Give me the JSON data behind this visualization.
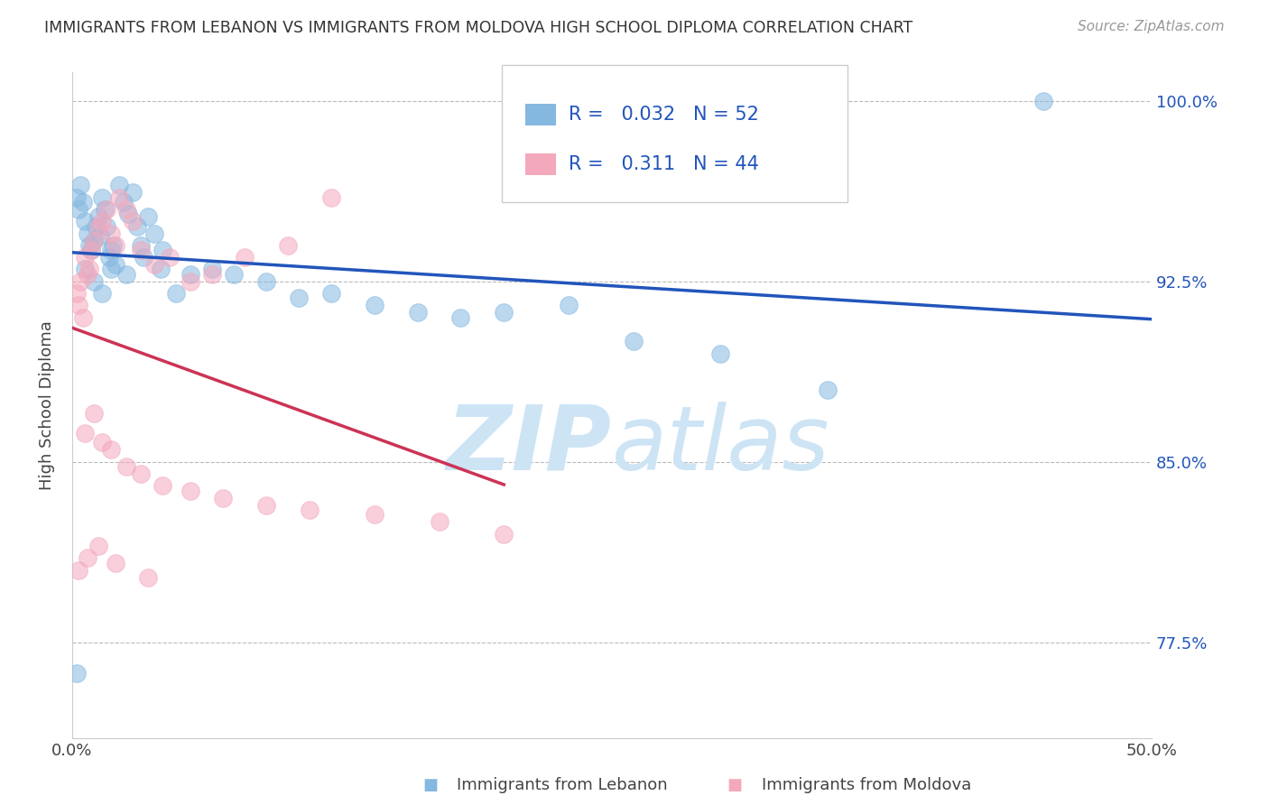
{
  "title": "IMMIGRANTS FROM LEBANON VS IMMIGRANTS FROM MOLDOVA HIGH SCHOOL DIPLOMA CORRELATION CHART",
  "source": "Source: ZipAtlas.com",
  "ylabel": "High School Diploma",
  "R1": 0.032,
  "N1": 52,
  "R2": 0.311,
  "N2": 44,
  "color1": "#85b8e0",
  "color2": "#f4a8bc",
  "trend_color1": "#2255bb",
  "trend_color2": "#cc3355",
  "xlim": [
    0.0,
    0.5
  ],
  "ylim": [
    0.735,
    1.012
  ],
  "xtick_vals": [
    0.0,
    0.05,
    0.1,
    0.15,
    0.2,
    0.25,
    0.3,
    0.35,
    0.4,
    0.45,
    0.5
  ],
  "xtick_labels": [
    "0.0%",
    "",
    "",
    "",
    "",
    "",
    "",
    "",
    "",
    "",
    "50.0%"
  ],
  "ytick_values": [
    0.775,
    0.85,
    0.925,
    1.0
  ],
  "ytick_labels_right": [
    "77.5%",
    "85.0%",
    "92.5%",
    "100.0%"
  ],
  "watermark_top": "ZIP",
  "watermark_bot": "atlas",
  "watermark_color": "#cde4f5",
  "lebanon_x": [
    0.002,
    0.003,
    0.004,
    0.005,
    0.006,
    0.007,
    0.008,
    0.009,
    0.01,
    0.011,
    0.012,
    0.013,
    0.014,
    0.015,
    0.016,
    0.017,
    0.018,
    0.019,
    0.02,
    0.022,
    0.024,
    0.026,
    0.028,
    0.03,
    0.032,
    0.035,
    0.038,
    0.042,
    0.048,
    0.055,
    0.065,
    0.075,
    0.09,
    0.105,
    0.12,
    0.14,
    0.16,
    0.18,
    0.2,
    0.23,
    0.26,
    0.3,
    0.35,
    0.006,
    0.01,
    0.014,
    0.018,
    0.025,
    0.033,
    0.041,
    0.45,
    0.002
  ],
  "lebanon_y": [
    0.96,
    0.955,
    0.965,
    0.958,
    0.95,
    0.945,
    0.94,
    0.938,
    0.942,
    0.948,
    0.952,
    0.944,
    0.96,
    0.955,
    0.948,
    0.935,
    0.93,
    0.94,
    0.932,
    0.965,
    0.958,
    0.953,
    0.962,
    0.948,
    0.94,
    0.952,
    0.945,
    0.938,
    0.92,
    0.928,
    0.93,
    0.928,
    0.925,
    0.918,
    0.92,
    0.915,
    0.912,
    0.91,
    0.912,
    0.915,
    0.9,
    0.895,
    0.88,
    0.93,
    0.925,
    0.92,
    0.938,
    0.928,
    0.935,
    0.93,
    1.0,
    0.762
  ],
  "moldova_x": [
    0.002,
    0.003,
    0.004,
    0.005,
    0.006,
    0.007,
    0.008,
    0.009,
    0.01,
    0.012,
    0.014,
    0.016,
    0.018,
    0.02,
    0.022,
    0.025,
    0.028,
    0.032,
    0.038,
    0.045,
    0.055,
    0.065,
    0.08,
    0.1,
    0.006,
    0.01,
    0.014,
    0.018,
    0.025,
    0.032,
    0.042,
    0.055,
    0.07,
    0.09,
    0.11,
    0.14,
    0.17,
    0.2,
    0.003,
    0.007,
    0.012,
    0.02,
    0.035,
    0.12
  ],
  "moldova_y": [
    0.92,
    0.915,
    0.925,
    0.91,
    0.935,
    0.928,
    0.93,
    0.938,
    0.942,
    0.948,
    0.95,
    0.955,
    0.945,
    0.94,
    0.96,
    0.955,
    0.95,
    0.938,
    0.932,
    0.935,
    0.925,
    0.928,
    0.935,
    0.94,
    0.862,
    0.87,
    0.858,
    0.855,
    0.848,
    0.845,
    0.84,
    0.838,
    0.835,
    0.832,
    0.83,
    0.828,
    0.825,
    0.82,
    0.805,
    0.81,
    0.815,
    0.808,
    0.802,
    0.96
  ]
}
